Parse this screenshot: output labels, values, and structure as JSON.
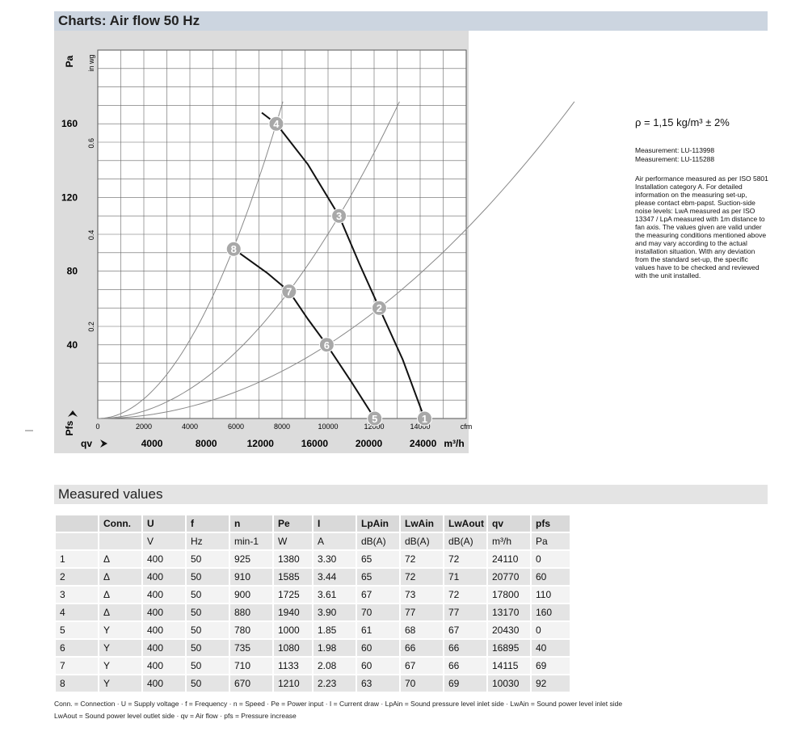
{
  "sections": {
    "chart_title": "Charts: Air flow 50 Hz",
    "table_title": "Measured values"
  },
  "notes": {
    "density": "ρ = 1,15 kg/m³ ± 2%",
    "measurement1": "Measurement: LU-113998",
    "measurement2": "Measurement: LU-115288",
    "description": "Air performance measured as per ISO 5801 Installation category A. For detailed information on the measuring set-up, please contact ebm-papst. Suction-side noise levels: LwA measured as per ISO 13347 / LpA measured with 1m distance to fan axis. The values given are valid under the measuring conditions mentioned above and may vary according to the actual installation situation. With any deviation from the standard set-up, the specific values have to be checked and reviewed with the unit installed."
  },
  "chart_data": {
    "type": "line",
    "x_unit_top": "cfm",
    "x_unit_bottom": "m³/h",
    "y_unit_left": "Pa",
    "y_unit_inner": "in wg",
    "x_label": "qv",
    "y_label": "Pfs",
    "xlim_cfm": [
      0,
      16000
    ],
    "ylim_pa": [
      0,
      200
    ],
    "x_ticks_cfm": [
      "0",
      "2000",
      "4000",
      "6000",
      "8000",
      "10000",
      "12000",
      "14000",
      "cfm"
    ],
    "x_ticks_m3h": [
      "4000",
      "8000",
      "12000",
      "16000",
      "20000",
      "24000"
    ],
    "y_ticks_pa": [
      "40",
      "80",
      "120",
      "160"
    ],
    "y_ticks_inwg": [
      "0.2",
      "0.4",
      "0.6"
    ],
    "grid": true,
    "points": [
      {
        "id": "1",
        "qv_m3h": 24110,
        "pfs_pa": 0
      },
      {
        "id": "2",
        "qv_m3h": 20770,
        "pfs_pa": 60
      },
      {
        "id": "3",
        "qv_m3h": 17800,
        "pfs_pa": 110
      },
      {
        "id": "4",
        "qv_m3h": 13170,
        "pfs_pa": 160
      },
      {
        "id": "5",
        "qv_m3h": 20430,
        "pfs_pa": 0
      },
      {
        "id": "6",
        "qv_m3h": 16895,
        "pfs_pa": 40
      },
      {
        "id": "7",
        "qv_m3h": 14115,
        "pfs_pa": 69
      },
      {
        "id": "8",
        "qv_m3h": 10030,
        "pfs_pa": 92
      }
    ],
    "fan_curves": [
      {
        "name": "Δ",
        "points": [
          [
            12100,
            166
          ],
          [
            13170,
            160
          ],
          [
            15500,
            138
          ],
          [
            17800,
            110
          ],
          [
            19300,
            84
          ],
          [
            20770,
            60
          ],
          [
            22500,
            32
          ],
          [
            24110,
            0
          ]
        ]
      },
      {
        "name": "Y",
        "points": [
          [
            10030,
            92
          ],
          [
            12500,
            79
          ],
          [
            14115,
            69
          ],
          [
            15500,
            54
          ],
          [
            16895,
            40
          ],
          [
            18700,
            20
          ],
          [
            20430,
            0
          ]
        ]
      }
    ],
    "system_curves": [
      "4",
      "3",
      "2"
    ]
  },
  "table": {
    "header": [
      "",
      "Conn.",
      "U",
      "f",
      "n",
      "Pe",
      "I",
      "LpAin",
      "LwAin",
      "LwAout",
      "qv",
      "pfs"
    ],
    "units": [
      "",
      "",
      "V",
      "Hz",
      "min-1",
      "W",
      "A",
      "dB(A)",
      "dB(A)",
      "dB(A)",
      "m³/h",
      "Pa"
    ],
    "rows": [
      [
        "1",
        "Δ",
        "400",
        "50",
        "925",
        "1380",
        "3.30",
        "65",
        "72",
        "72",
        "24110",
        "0"
      ],
      [
        "2",
        "Δ",
        "400",
        "50",
        "910",
        "1585",
        "3.44",
        "65",
        "72",
        "71",
        "20770",
        "60"
      ],
      [
        "3",
        "Δ",
        "400",
        "50",
        "900",
        "1725",
        "3.61",
        "67",
        "73",
        "72",
        "17800",
        "110"
      ],
      [
        "4",
        "Δ",
        "400",
        "50",
        "880",
        "1940",
        "3.90",
        "70",
        "77",
        "77",
        "13170",
        "160"
      ],
      [
        "5",
        "Y",
        "400",
        "50",
        "780",
        "1000",
        "1.85",
        "61",
        "68",
        "67",
        "20430",
        "0"
      ],
      [
        "6",
        "Y",
        "400",
        "50",
        "735",
        "1080",
        "1.98",
        "60",
        "66",
        "66",
        "16895",
        "40"
      ],
      [
        "7",
        "Y",
        "400",
        "50",
        "710",
        "1133",
        "2.08",
        "60",
        "67",
        "66",
        "14115",
        "69"
      ],
      [
        "8",
        "Y",
        "400",
        "50",
        "670",
        "1210",
        "2.23",
        "63",
        "70",
        "69",
        "10030",
        "92"
      ]
    ]
  },
  "legend": {
    "line1": "Conn. = Connection · U = Supply voltage · f = Frequency · n = Speed · Pe = Power input · I = Current draw · LpAin = Sound pressure level inlet side · LwAin = Sound power level inlet side",
    "line2": "LwAout = Sound power level outlet side · qv = Air flow · pfs = Pressure increase"
  }
}
